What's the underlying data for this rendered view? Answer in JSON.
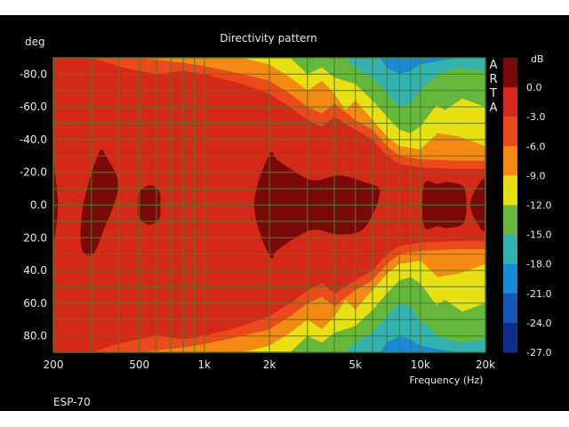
{
  "chart_data": {
    "type": "heatmap",
    "title": "Directivity pattern",
    "ylabel": "deg",
    "xlabel": "Frequency (Hz)",
    "x_scale": "log",
    "xlim": [
      200,
      20000
    ],
    "ylim": [
      -90,
      90
    ],
    "y_inverted": true,
    "grid": true,
    "x_ticks": [
      {
        "v": 200,
        "label": "200"
      },
      {
        "v": 500,
        "label": "500"
      },
      {
        "v": 1000,
        "label": "1k"
      },
      {
        "v": 2000,
        "label": "2k"
      },
      {
        "v": 5000,
        "label": "5k"
      },
      {
        "v": 10000,
        "label": "10k"
      },
      {
        "v": 20000,
        "label": "20k"
      }
    ],
    "y_ticks": [
      {
        "v": -80,
        "label": "-80.0"
      },
      {
        "v": -60,
        "label": "-60.0"
      },
      {
        "v": -40,
        "label": "-40.0"
      },
      {
        "v": -20,
        "label": "-20.0"
      },
      {
        "v": 0,
        "label": "0.0"
      },
      {
        "v": 20,
        "label": "20.0"
      },
      {
        "v": 40,
        "label": "40.0"
      },
      {
        "v": 60,
        "label": "60.0"
      },
      {
        "v": 80,
        "label": "80.0"
      }
    ],
    "colorbar": {
      "unit": "dB",
      "ticks": [
        "0.0",
        "-3.0",
        "-6.0",
        "-9.0",
        "-12.0",
        "-15.0",
        "-18.0",
        "-21.0",
        "-24.0",
        "-27.0"
      ],
      "colors": [
        "#7a0a0a",
        "#d42818",
        "#ea4a1c",
        "#f48a14",
        "#e8e012",
        "#66b83c",
        "#33b2b0",
        "#1a8ad6",
        "#1856b6",
        "#0d2f8a"
      ]
    },
    "watermark": "ARTA",
    "footer_label": "ESP-70",
    "levels": [
      {
        "db": -6,
        "color": "#ea4a1c",
        "upper": [
          [
            200,
            -90
          ],
          [
            300,
            -90
          ],
          [
            420,
            -84
          ],
          [
            600,
            -80
          ],
          [
            800,
            -82
          ],
          [
            1000,
            -80
          ],
          [
            1500,
            -74
          ],
          [
            2000,
            -68
          ],
          [
            2500,
            -60
          ],
          [
            3000,
            -52
          ],
          [
            3500,
            -48
          ],
          [
            4000,
            -54
          ],
          [
            5000,
            -46
          ],
          [
            6000,
            -40
          ],
          [
            7000,
            -30
          ],
          [
            8000,
            -25
          ],
          [
            10000,
            -23
          ],
          [
            15000,
            -22
          ],
          [
            20000,
            -22
          ]
        ]
      },
      {
        "db": -9,
        "color": "#f48a14",
        "upper": [
          [
            300,
            -90
          ],
          [
            500,
            -90
          ],
          [
            800,
            -87
          ],
          [
            1000,
            -85
          ],
          [
            1500,
            -80
          ],
          [
            2000,
            -76
          ],
          [
            2500,
            -68
          ],
          [
            3000,
            -60
          ],
          [
            3500,
            -56
          ],
          [
            4000,
            -62
          ],
          [
            5000,
            -52
          ],
          [
            6000,
            -46
          ],
          [
            7000,
            -36
          ],
          [
            8000,
            -30
          ],
          [
            10000,
            -28
          ],
          [
            15000,
            -27
          ],
          [
            20000,
            -27
          ]
        ]
      },
      {
        "db": -12,
        "color": "#e8e012",
        "upper": [
          [
            1500,
            -90
          ],
          [
            2000,
            -86
          ],
          [
            2500,
            -78
          ],
          [
            3000,
            -70
          ],
          [
            3500,
            -76
          ],
          [
            4000,
            -68
          ],
          [
            4500,
            -58
          ],
          [
            5000,
            -64
          ],
          [
            6000,
            -52
          ],
          [
            7000,
            -42
          ],
          [
            8000,
            -36
          ],
          [
            10000,
            -34
          ],
          [
            12000,
            -44
          ],
          [
            15000,
            -42
          ],
          [
            20000,
            -36
          ]
        ]
      },
      {
        "db": -15,
        "color": "#66b83c",
        "upper": [
          [
            2500,
            -90
          ],
          [
            3000,
            -80
          ],
          [
            3500,
            -84
          ],
          [
            4000,
            -78
          ],
          [
            5000,
            -74
          ],
          [
            6000,
            -64
          ],
          [
            7000,
            -54
          ],
          [
            8000,
            -46
          ],
          [
            9000,
            -44
          ],
          [
            10000,
            -48
          ],
          [
            12000,
            -62
          ],
          [
            15000,
            -66
          ],
          [
            20000,
            -60
          ]
        ]
      },
      {
        "db": -18,
        "color": "#33b2b0",
        "upper": [
          [
            4500,
            -90
          ],
          [
            5000,
            -84
          ],
          [
            6000,
            -78
          ],
          [
            7000,
            -68
          ],
          [
            8000,
            -60
          ],
          [
            9000,
            -62
          ],
          [
            10000,
            -70
          ],
          [
            12000,
            -80
          ],
          [
            15000,
            -84
          ],
          [
            20000,
            -82
          ]
        ]
      },
      {
        "db": -21,
        "color": "#1a8ad6",
        "upper": [
          [
            6500,
            -90
          ],
          [
            7000,
            -84
          ],
          [
            8000,
            -80
          ],
          [
            9000,
            -82
          ],
          [
            10000,
            -86
          ],
          [
            12000,
            -88
          ],
          [
            15000,
            -90
          ]
        ]
      }
    ],
    "lobes": [
      {
        "x": [
          325,
          350,
          400,
          380,
          345,
          305,
          270,
          275
        ],
        "y": [
          -32,
          -30,
          -14,
          0,
          14,
          30,
          26,
          0
        ]
      },
      {
        "x": [
          560,
          530,
          590,
          570,
          530,
          560
        ],
        "y": [
          -12,
          -6,
          0,
          6,
          12,
          12
        ]
      },
      {
        "x": [
          2000,
          2200,
          2800,
          3300,
          4200,
          5500,
          6500,
          5500,
          4200,
          3300,
          2800,
          2200,
          2000,
          1700
        ],
        "y": [
          -31,
          -27,
          -18,
          -15,
          -18,
          -14,
          -8,
          14,
          18,
          15,
          18,
          27,
          31,
          0
        ]
      },
      {
        "x": [
          200,
          205,
          210,
          205,
          200
        ],
        "y": [
          -20,
          -16,
          0,
          16,
          20
        ]
      },
      {
        "x": [
          10500,
          12000,
          13500,
          16000
        ],
        "y": [
          -14,
          -13,
          -14,
          0
        ]
      },
      {
        "x": [
          20000,
          18500,
          17000,
          18500,
          20000
        ],
        "y": [
          -14,
          -12,
          0,
          12,
          14
        ]
      }
    ],
    "inner_pockets": [
      {
        "db": -15,
        "color": "#66b83c",
        "x": [
          11000,
          13000,
          16000,
          20000,
          20000,
          16000,
          13000,
          11000
        ],
        "y": [
          -64,
          -58,
          -66,
          -70,
          -74,
          -72,
          -70,
          -68
        ]
      }
    ]
  }
}
